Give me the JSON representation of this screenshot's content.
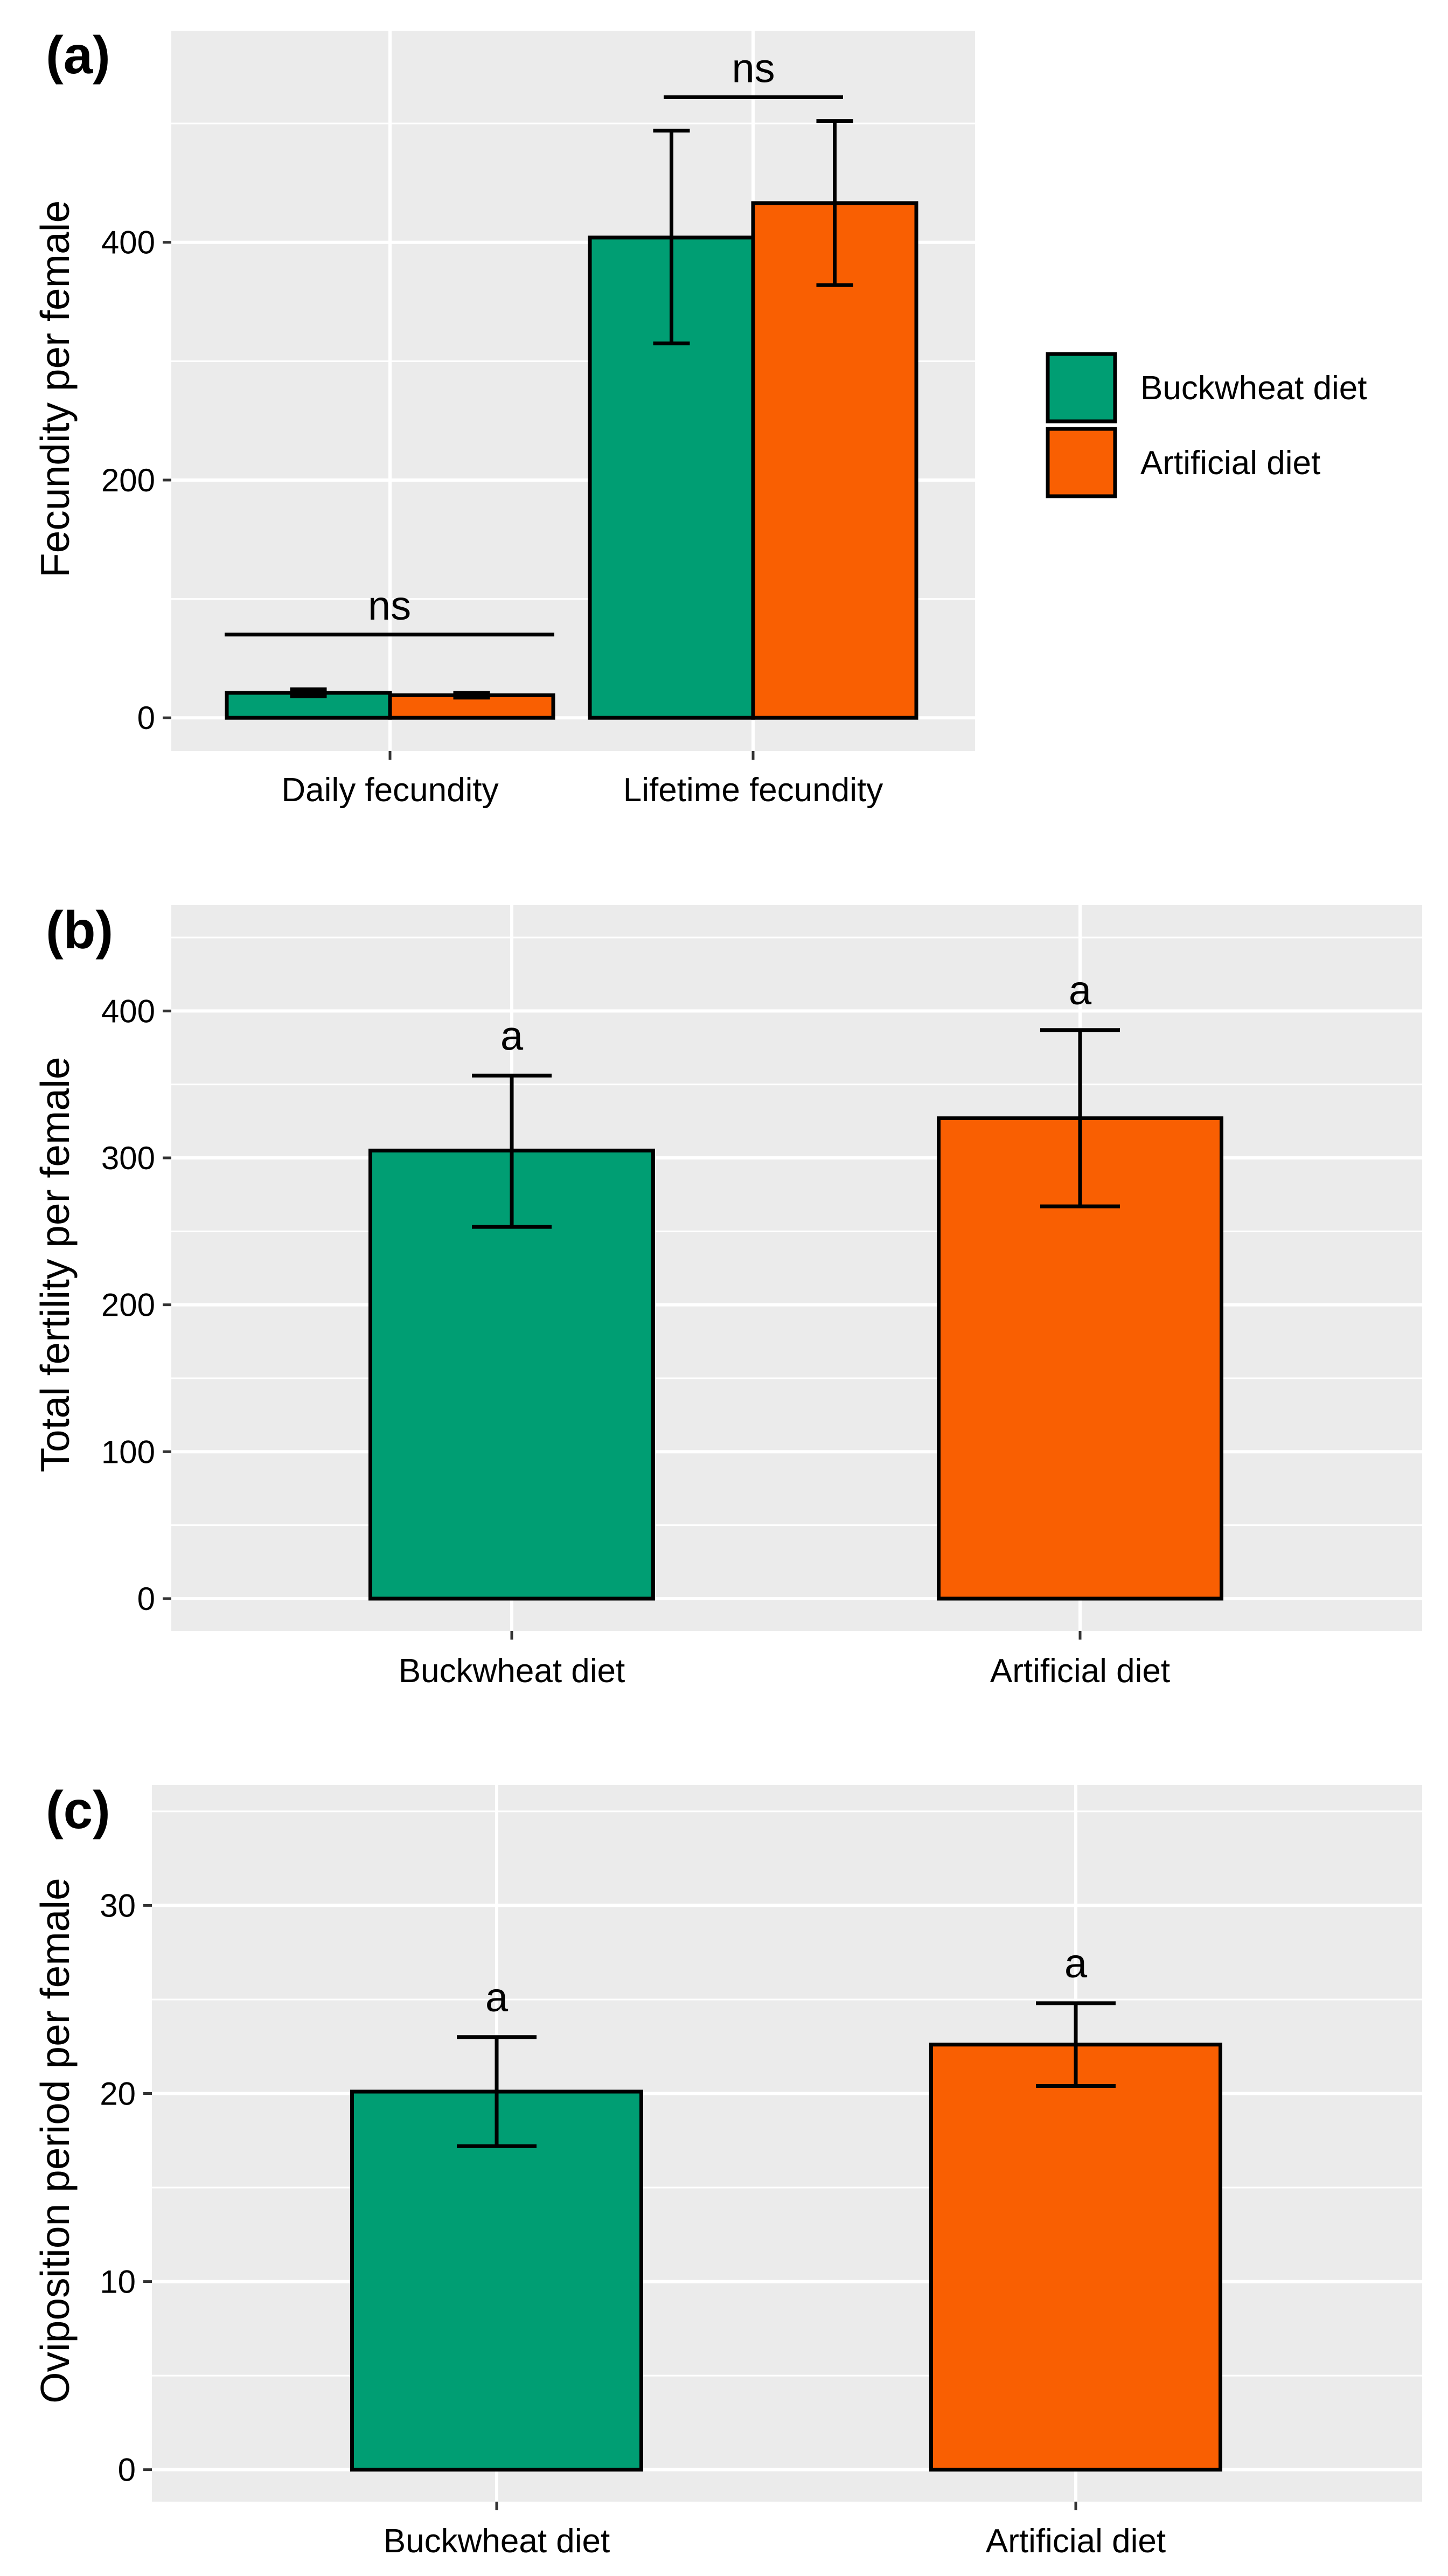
{
  "colors": {
    "buckwheat": "#009E73",
    "artificial": "#F95F02",
    "panel_bg": "#EBEBEB",
    "grid": "#FFFFFF",
    "ink": "#000000"
  },
  "legend": {
    "items": [
      {
        "label": "Buckwheat diet",
        "color": "#009E73"
      },
      {
        "label": "Artificial diet",
        "color": "#F95F02"
      }
    ],
    "placement": "right-of-panel-a"
  },
  "chart_data": [
    {
      "id": "a",
      "panel_label": "(a)",
      "type": "bar",
      "grouped": true,
      "ylabel": "Fecundity per female",
      "xlabel": "",
      "ylim": [
        -28,
        578
      ],
      "yticks": [
        0,
        200,
        400
      ],
      "categories": [
        "Daily fecundity",
        "Lifetime fecundity"
      ],
      "series": [
        {
          "name": "Buckwheat diet",
          "values": [
            21,
            404
          ],
          "error_low": [
            18,
            315
          ],
          "error_high": [
            24,
            494
          ]
        },
        {
          "name": "Artificial diet",
          "values": [
            19,
            433
          ],
          "error_low": [
            17,
            364
          ],
          "error_high": [
            21,
            502
          ]
        }
      ],
      "annotations": [
        "ns",
        "ns"
      ],
      "bracket_levels": [
        70,
        522
      ]
    },
    {
      "id": "b",
      "panel_label": "(b)",
      "type": "bar",
      "ylabel": "Total fertility per female",
      "xlabel": "",
      "ylim": [
        -22,
        472
      ],
      "yticks": [
        0,
        100,
        200,
        300,
        400
      ],
      "categories": [
        "Buckwheat diet",
        "Artificial diet"
      ],
      "values": [
        305,
        327
      ],
      "error_low": [
        253,
        267
      ],
      "error_high": [
        356,
        387
      ],
      "annotations": [
        "a",
        "a"
      ]
    },
    {
      "id": "c",
      "panel_label": "(c)",
      "type": "bar",
      "ylabel": "Oviposition period per female",
      "xlabel": "",
      "ylim": [
        -1.7,
        36.4
      ],
      "yticks": [
        0,
        10,
        20,
        30
      ],
      "categories": [
        "Buckwheat diet",
        "Artificial diet"
      ],
      "values": [
        20.1,
        22.6
      ],
      "error_low": [
        17.2,
        20.4
      ],
      "error_high": [
        23.0,
        24.8
      ],
      "annotations": [
        "a",
        "a"
      ]
    }
  ]
}
